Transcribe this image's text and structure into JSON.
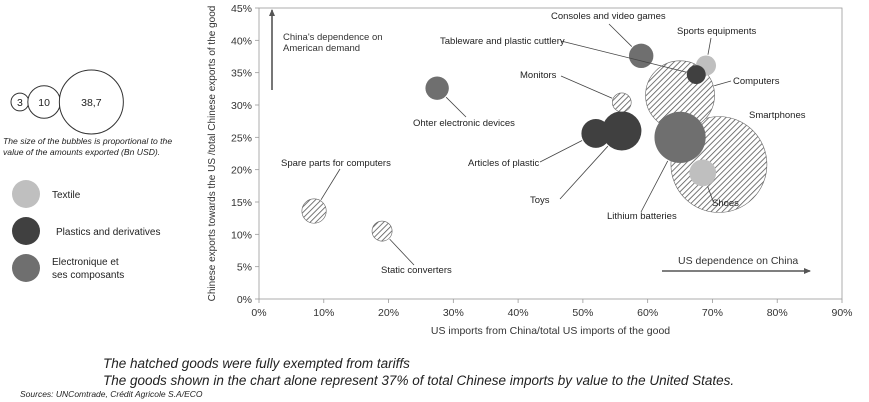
{
  "chart_data": {
    "type": "scatter",
    "subtype": "bubble",
    "xlabel": "US imports from China/total US imports of the good",
    "ylabel": "Chinese exports towards the US /total Chinese exports of the good",
    "xlim": [
      0,
      90
    ],
    "ylim": [
      0,
      45
    ],
    "x_ticks": [
      "0%",
      "10%",
      "20%",
      "30%",
      "40%",
      "50%",
      "60%",
      "70%",
      "80%",
      "90%"
    ],
    "y_ticks": [
      "0%",
      "5%",
      "10%",
      "15%",
      "20%",
      "25%",
      "30%",
      "35%",
      "40%",
      "45%"
    ],
    "grid": false,
    "arrow_y_label": "China's dependence on American demand",
    "arrow_x_label": "US dependence on China",
    "size_legend": {
      "values": [
        "3",
        "10",
        "38,7"
      ],
      "caption": "The size of the bubbles is proportional to the value of the amounts exported (Bn USD)."
    },
    "categories": [
      {
        "name": "Textile",
        "color": "#bfbfbf"
      },
      {
        "name": "Plastics and derivatives",
        "color": "#404040"
      },
      {
        "name": "Electronique et ses composants",
        "color": "#6f6f6f"
      }
    ],
    "points": [
      {
        "label": "Smartphones",
        "x": 71,
        "y": 20.8,
        "size": 38.7,
        "category": "Electronique et ses composants",
        "hatched": true
      },
      {
        "label": "Computers",
        "x": 65,
        "y": 31.5,
        "size": 20,
        "category": "Electronique et ses composants",
        "hatched": true
      },
      {
        "label": "Lithium batteries",
        "x": 65,
        "y": 25,
        "size": 11,
        "category": "Electronique et ses composants",
        "hatched": false
      },
      {
        "label": "Toys",
        "x": 56,
        "y": 26,
        "size": 6.5,
        "category": "Plastics and derivatives",
        "hatched": false
      },
      {
        "label": "Articles of plastic",
        "x": 52,
        "y": 25.6,
        "size": 3.5,
        "category": "Plastics and derivatives",
        "hatched": false
      },
      {
        "label": "Monitors",
        "x": 56,
        "y": 30.4,
        "size": 1.5,
        "category": "Electronique et ses composants",
        "hatched": true
      },
      {
        "label": "Consoles and video games",
        "x": 59,
        "y": 37.6,
        "size": 2.5,
        "category": "Electronique et ses composants",
        "hatched": false
      },
      {
        "label": "Sports equipments",
        "x": 69,
        "y": 36.1,
        "size": 1.7,
        "category": "Textile",
        "hatched": false
      },
      {
        "label": "Tableware and plastic cuttlery",
        "x": 67.5,
        "y": 34.7,
        "size": 1.5,
        "category": "Plastics and derivatives",
        "hatched": false
      },
      {
        "label": "Shoes",
        "x": 68.5,
        "y": 19.5,
        "size": 3,
        "category": "Textile",
        "hatched": false
      },
      {
        "label": "Ohter electronic devices",
        "x": 27.5,
        "y": 32.6,
        "size": 2.3,
        "category": "Electronique et ses composants",
        "hatched": false
      },
      {
        "label": "Spare parts for computers",
        "x": 8.5,
        "y": 13.6,
        "size": 2.5,
        "category": "Electronique et ses composants",
        "hatched": true
      },
      {
        "label": "Static converters",
        "x": 19,
        "y": 10.5,
        "size": 1.7,
        "category": "Electronique et ses composants",
        "hatched": true
      }
    ]
  },
  "notes": {
    "hatched": "The hatched goods were fully exempted from tariffs",
    "share": "The goods shown in the chart alone represent 37% of total Chinese imports by value to the United States.",
    "sources": "Sources: UNComtrade, Crédit Agricole S.A/ECO"
  }
}
